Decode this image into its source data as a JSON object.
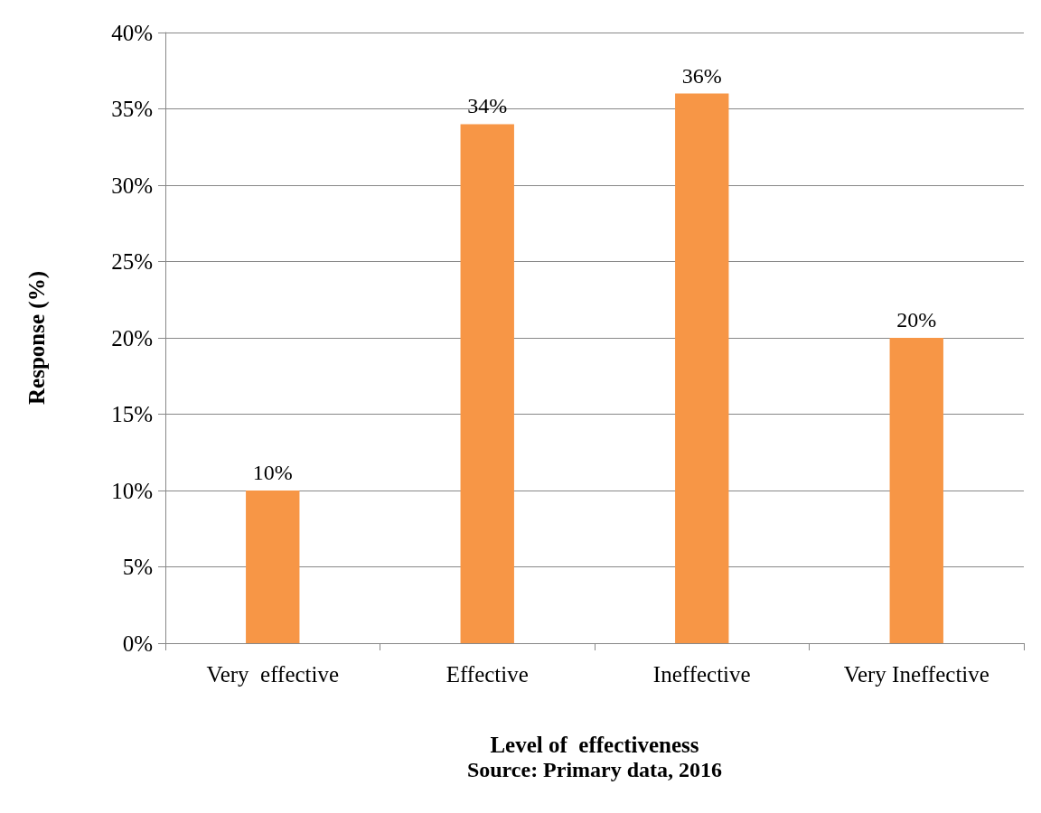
{
  "chart_data": {
    "type": "bar",
    "categories": [
      "Very  effective",
      "Effective",
      "Ineffective",
      "Very Ineffective"
    ],
    "values": [
      10,
      34,
      36,
      20
    ],
    "color": "#f79646",
    "value_labels": [
      "10%",
      "34%",
      "36%",
      "20%"
    ],
    "ylabel": "Response (%)",
    "xlabel": "Level of  effectiveness",
    "annotations": [
      "Source: Primary data, 2016"
    ],
    "ylim": [
      0,
      40
    ],
    "yticks": [
      {
        "value": 0,
        "label": "0%"
      },
      {
        "value": 5,
        "label": "5%"
      },
      {
        "value": 10,
        "label": "10%"
      },
      {
        "value": 15,
        "label": "15%"
      },
      {
        "value": 20,
        "label": "20%"
      },
      {
        "value": 25,
        "label": "25%"
      },
      {
        "value": 30,
        "label": "30%"
      },
      {
        "value": 35,
        "label": "35%"
      },
      {
        "value": 40,
        "label": "40%"
      }
    ],
    "grid": "y"
  }
}
